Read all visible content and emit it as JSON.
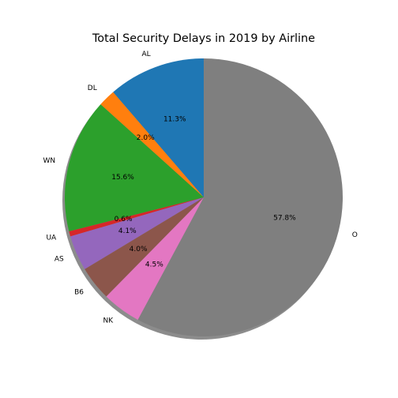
{
  "chart_data": {
    "type": "pie",
    "title": "Total Security Delays in 2019 by Airline",
    "labels": [
      "AL",
      "DL",
      "WN",
      "UA",
      "AS",
      "B6",
      "NK",
      "O"
    ],
    "values": [
      11.3,
      2.0,
      15.6,
      0.6,
      4.1,
      4.0,
      4.5,
      57.8
    ],
    "percent_labels": [
      "11.3%",
      "2.0%",
      "15.6%",
      "0.6%",
      "4.1%",
      "4.0%",
      "4.5%",
      "57.8%"
    ],
    "colors": [
      "#1f77b4",
      "#ff7f0e",
      "#2ca02c",
      "#d62728",
      "#9467bd",
      "#8c564b",
      "#e377c2",
      "#7f7f7f"
    ],
    "start_angle_deg": 90,
    "direction": "counterclockwise",
    "shadow": true
  }
}
